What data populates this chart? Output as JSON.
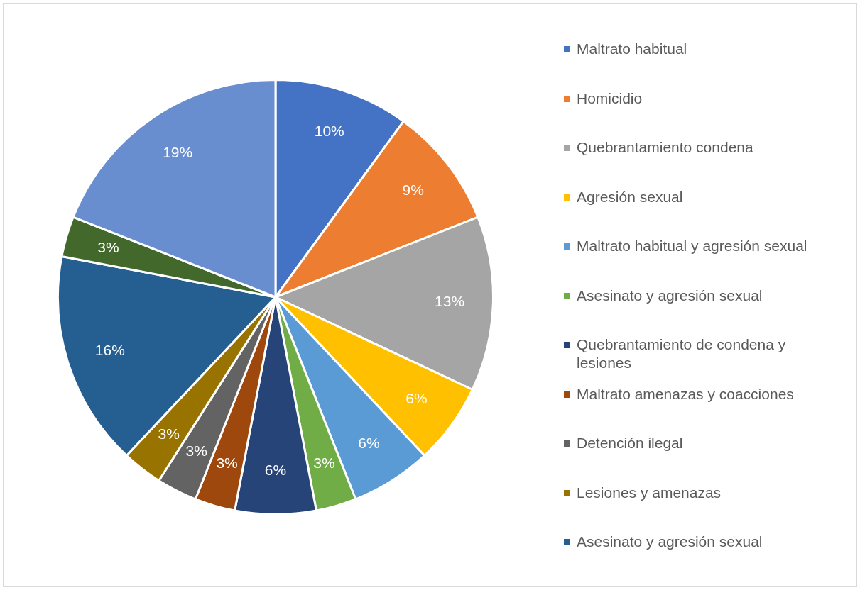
{
  "chart_data": {
    "type": "pie",
    "categories": [
      "Maltrato habitual",
      "Homicidio",
      "Quebrantamiento condena",
      "Agresión sexual",
      "Maltrato habitual y agresión sexual",
      "Asesinato y agresión sexual",
      "Quebrantamiento de condena y lesiones",
      "Maltrato amenazas y coacciones",
      "Detención ilegal",
      "Lesiones y amenazas",
      "Asesinato y agresión sexual",
      null,
      null
    ],
    "values": [
      10,
      9,
      13,
      6,
      6,
      3,
      6,
      3,
      3,
      3,
      16,
      3,
      19
    ],
    "colors": [
      "#4472c4",
      "#ed7d31",
      "#a5a5a5",
      "#ffc000",
      "#5b9bd5",
      "#70ad47",
      "#264478",
      "#9e480e",
      "#636363",
      "#997300",
      "#255e91",
      "#43682b",
      "#698ed0"
    ],
    "value_labels": [
      "10%",
      "9%",
      "13%",
      "6%",
      "6%",
      "3%",
      "6%",
      "3%",
      "3%",
      "3%",
      "16%",
      "3%",
      "19%"
    ],
    "legend": "right"
  }
}
